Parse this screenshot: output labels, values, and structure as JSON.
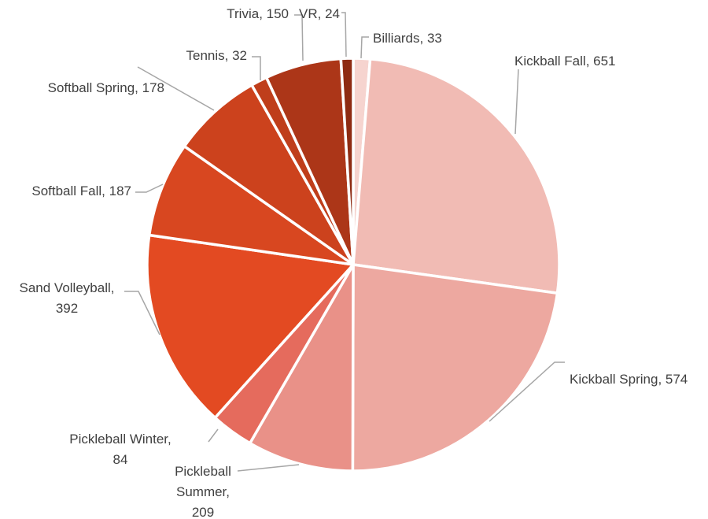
{
  "chart_data": {
    "type": "pie",
    "title": "",
    "start_angle_deg": 0,
    "direction": "clockwise",
    "slices": [
      {
        "label": "Billiards",
        "value": 33,
        "color": "#f6d4cf",
        "label_lines": [
          "Billiards, 33"
        ]
      },
      {
        "label": "Kickball Fall",
        "value": 651,
        "color": "#f1bbb4",
        "label_lines": [
          "Kickball Fall, 651"
        ]
      },
      {
        "label": "Kickball Spring",
        "value": 574,
        "color": "#eda8a0",
        "label_lines": [
          "Kickball Spring, 574"
        ]
      },
      {
        "label": "Pickleball Summer",
        "value": 209,
        "color": "#e99188",
        "label_lines": [
          "Pickleball",
          "Summer,",
          "209"
        ]
      },
      {
        "label": "Pickleball Winter",
        "value": 84,
        "color": "#e56b5d",
        "label_lines": [
          "Pickleball Winter,",
          "84"
        ]
      },
      {
        "label": "Sand Volleyball",
        "value": 392,
        "color": "#e34a22",
        "label_lines": [
          "Sand Volleyball,",
          "392"
        ]
      },
      {
        "label": "Softball Fall",
        "value": 187,
        "color": "#d84720",
        "label_lines": [
          "Softball Fall, 187"
        ]
      },
      {
        "label": "Softball Spring",
        "value": 178,
        "color": "#cc421d",
        "label_lines": [
          "Softball Spring, 178"
        ]
      },
      {
        "label": "Tennis",
        "value": 32,
        "color": "#bf3e1b",
        "label_lines": [
          "Tennis, 32"
        ]
      },
      {
        "label": "Trivia",
        "value": 150,
        "color": "#ac3618",
        "label_lines": [
          "Trivia, 150"
        ]
      },
      {
        "label": "VR",
        "value": 24,
        "color": "#8e2b12",
        "label_lines": [
          "VR, 24"
        ]
      }
    ]
  }
}
